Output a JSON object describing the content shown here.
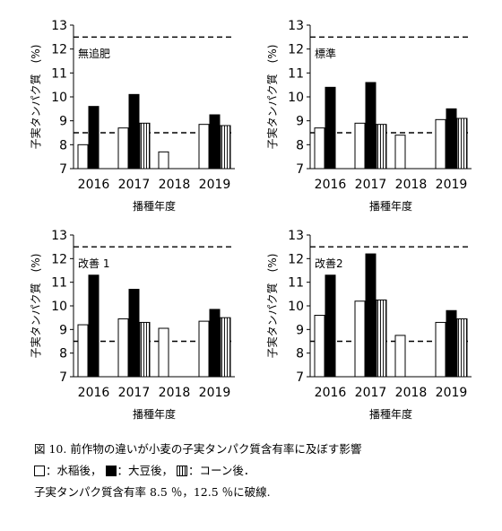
{
  "chart_data": [
    {
      "type": "bar",
      "panel_label": "無追肥",
      "categories": [
        "2016",
        "2017",
        "2018",
        "2019"
      ],
      "series": [
        {
          "name": "水稲後",
          "values": [
            8.0,
            8.7,
            7.7,
            8.85
          ]
        },
        {
          "name": "大豆後",
          "values": [
            9.6,
            10.1,
            null,
            9.25
          ]
        },
        {
          "name": "コーン後",
          "values": [
            null,
            8.9,
            null,
            8.8
          ]
        }
      ],
      "ylabel": "子実タンパク質　(%)",
      "xlabel": "播種年度",
      "ylim": [
        7,
        13
      ],
      "yticks": [
        "7",
        "8",
        "9",
        "10",
        "11",
        "12",
        "13"
      ],
      "reference_lines": [
        8.5,
        12.5
      ]
    },
    {
      "type": "bar",
      "panel_label": "標準",
      "categories": [
        "2016",
        "2017",
        "2018",
        "2019"
      ],
      "series": [
        {
          "name": "水稲後",
          "values": [
            8.7,
            8.9,
            8.4,
            9.05
          ]
        },
        {
          "name": "大豆後",
          "values": [
            10.4,
            10.6,
            null,
            9.5
          ]
        },
        {
          "name": "コーン後",
          "values": [
            null,
            8.85,
            null,
            9.1
          ]
        }
      ],
      "ylabel": "子実タンパク質　(%)",
      "xlabel": "播種年度",
      "ylim": [
        7,
        13
      ],
      "yticks": [
        "7",
        "8",
        "9",
        "10",
        "11",
        "12",
        "13"
      ],
      "reference_lines": [
        8.5,
        12.5
      ]
    },
    {
      "type": "bar",
      "panel_label": "改善 1",
      "categories": [
        "2016",
        "2017",
        "2018",
        "2019"
      ],
      "series": [
        {
          "name": "水稲後",
          "values": [
            9.2,
            9.45,
            9.05,
            9.35
          ]
        },
        {
          "name": "大豆後",
          "values": [
            11.3,
            10.7,
            null,
            9.85
          ]
        },
        {
          "name": "コーン後",
          "values": [
            null,
            9.3,
            null,
            9.5
          ]
        }
      ],
      "ylabel": "子実タンパク質　(%)",
      "xlabel": "播種年度",
      "ylim": [
        7,
        13
      ],
      "yticks": [
        "7",
        "8",
        "9",
        "10",
        "11",
        "12",
        "13"
      ],
      "reference_lines": [
        8.5,
        12.5
      ]
    },
    {
      "type": "bar",
      "panel_label": "改善2",
      "categories": [
        "2016",
        "2017",
        "2018",
        "2019"
      ],
      "series": [
        {
          "name": "水稲後",
          "values": [
            9.6,
            10.2,
            8.75,
            9.3
          ]
        },
        {
          "name": "大豆後",
          "values": [
            11.3,
            12.2,
            null,
            9.8
          ]
        },
        {
          "name": "コーン後",
          "values": [
            null,
            10.25,
            null,
            9.45
          ]
        }
      ],
      "ylabel": "子実タンパク質　(%)",
      "xlabel": "播種年度",
      "ylim": [
        7,
        13
      ],
      "yticks": [
        "7",
        "8",
        "9",
        "10",
        "11",
        "12",
        "13"
      ],
      "reference_lines": [
        8.5,
        12.5
      ]
    }
  ],
  "caption": {
    "title": "図 10.  前作物の違いが小麦の子実タンパク質含有率に及ぼす影響",
    "legend_water": "：水稲後，",
    "legend_soy": "：大豆後，",
    "legend_corn": "：コーン後．",
    "note": "子実タンパク質含有率 8.5 ％，12.5 ％に破線."
  },
  "colors": {
    "water": "#ffffff",
    "soy": "#000000",
    "corn": "hatched-vertical",
    "axis": "#000000"
  }
}
